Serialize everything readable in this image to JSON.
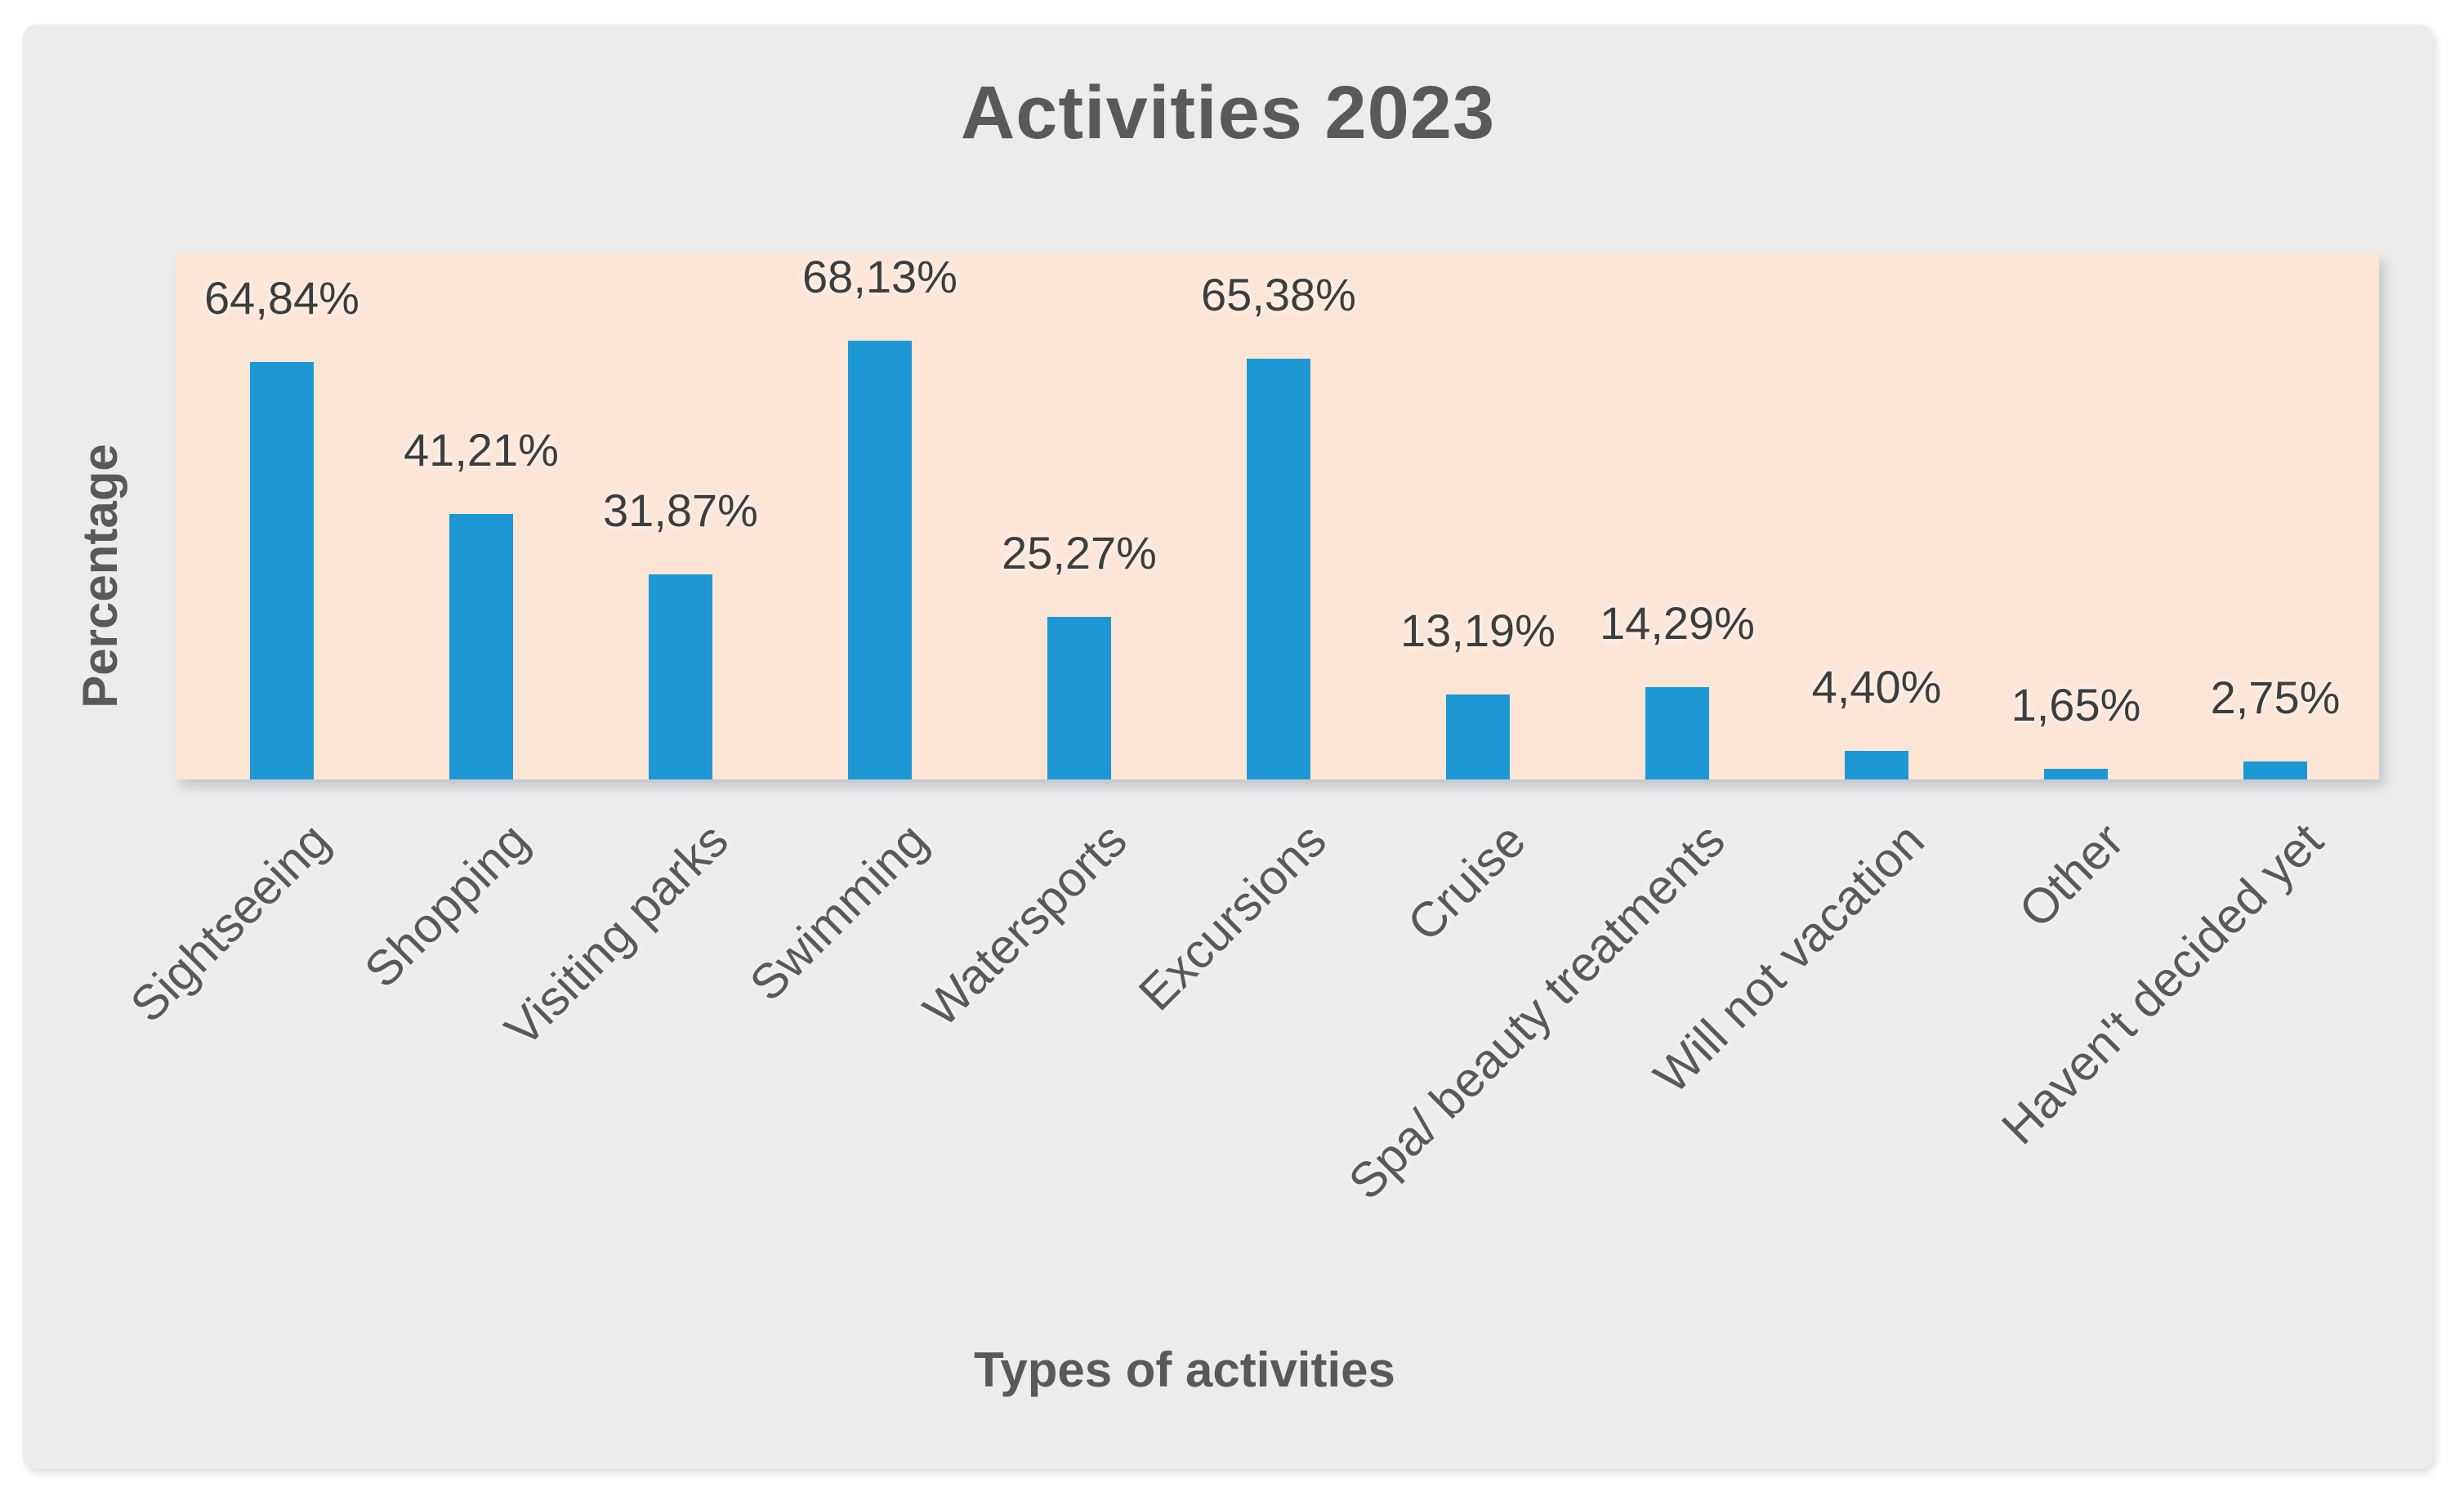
{
  "chart_data": {
    "type": "bar",
    "title": "Activities 2023",
    "xlabel": "Types of activities",
    "ylabel": "Percentage",
    "categories": [
      "Sightseeing",
      "Shopping",
      "Visiting parks",
      "Swimming",
      "Watersports",
      "Excursions",
      "Cruise",
      "Spa/ beauty treatments",
      "Will not vacation",
      "Other",
      "Haven't decided yet"
    ],
    "values": [
      64.84,
      41.21,
      31.87,
      68.13,
      25.27,
      65.38,
      13.19,
      14.29,
      4.4,
      1.65,
      2.75
    ],
    "labels": [
      "64,84%",
      "41,21%",
      "31,87%",
      "68,13%",
      "25,27%",
      "65,38%",
      "13,19%",
      "14,29%",
      "4,40%",
      "1,65%",
      "2,75%"
    ],
    "ylim": [
      0,
      81.7
    ],
    "grid": false,
    "legend": "none",
    "data_label_position": "outside-end",
    "category_label_rotation_deg": -45,
    "colors": {
      "bar": "#1E98D5",
      "plot_bg": "#FCE5D5",
      "panel_bg": "#ECECEC",
      "title_text": "#595959",
      "axis_text": "#595959",
      "label_text": "#3D3D3D"
    }
  }
}
